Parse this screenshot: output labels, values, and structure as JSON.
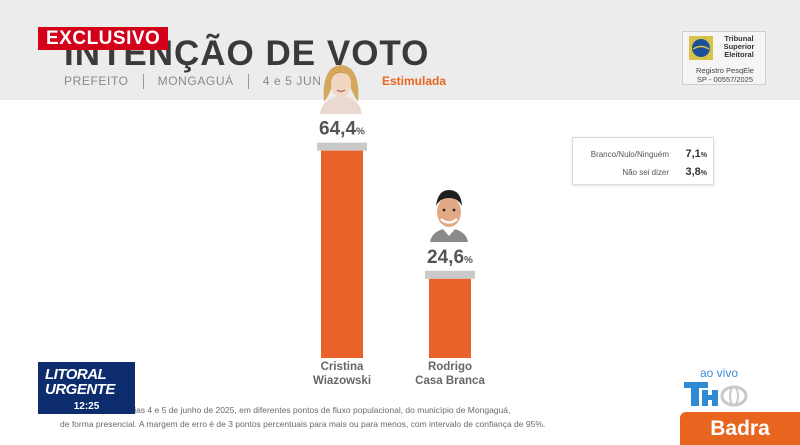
{
  "header": {
    "exclusive_label": "EXCLUSIVO",
    "title": "INTENÇÃO DE VOTO",
    "office": "PREFEITO",
    "city": "MONGAGUÁ",
    "dates": "4 e 5 JUN 20",
    "mode": "Estimulada"
  },
  "tse": {
    "name": "Tribunal Superior Eleitoral",
    "reg_label": "Registro PesqEle",
    "reg_number": "SP - 00557/2025"
  },
  "chart_data": {
    "type": "bar",
    "categories": [
      "Cristina Wiazowski",
      "Rodrigo Casa Branca"
    ],
    "category_lines": [
      [
        "Cristina",
        "Wiazowski"
      ],
      [
        "Rodrigo",
        "Casa Branca"
      ]
    ],
    "values": [
      64.4,
      24.6
    ],
    "value_labels": [
      "64,4",
      "24,6"
    ],
    "unit": "%",
    "bar_color": "#e8622a",
    "cap_color": "#c9c9c9"
  },
  "side_box": {
    "rows": [
      {
        "label": "Branco/Nulo/Ninguém",
        "value": "7,1"
      },
      {
        "label": "Não sei dizer",
        "value": "3,8"
      }
    ],
    "unit": "%"
  },
  "footer": {
    "note_line1": "080 eleitores, nos dias 4 e 5 de junho de 2025, em diferentes pontos de fluxo populacional, do município de Mongaguá,",
    "note_line2": "de forma presencial. A margem de erro é de 3 pontos percentuais para mais ou para menos, com intervalo de confiança de 95%.",
    "brand_line1": "LITORAL",
    "brand_line2": "URGENTE",
    "clock": "12:25",
    "live": "ao vivo",
    "sponsor": "Badra"
  }
}
